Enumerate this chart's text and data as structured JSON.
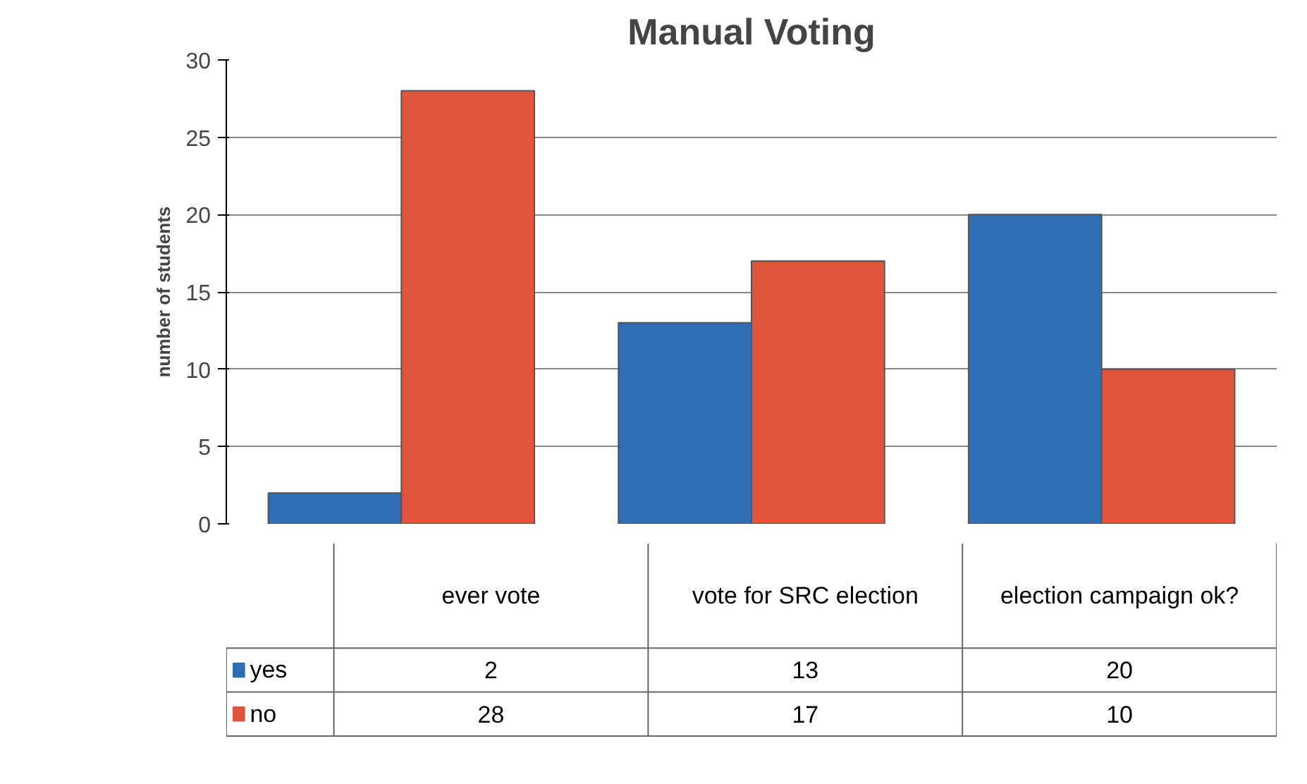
{
  "chart_data": {
    "type": "bar",
    "title": "Manual Voting",
    "ylabel": "number of students",
    "categories": [
      "ever vote",
      "vote for SRC election",
      "election campaign ok?"
    ],
    "series": [
      {
        "name": "yes",
        "color": "#2f6db5",
        "values": [
          2,
          13,
          20
        ]
      },
      {
        "name": "no",
        "color": "#e0553c",
        "values": [
          28,
          17,
          10
        ]
      }
    ],
    "ylim": [
      0,
      30
    ],
    "yticks": [
      0,
      5,
      10,
      15,
      20,
      25,
      30
    ],
    "grid": "y",
    "legend": "bottom left",
    "data_labels": true
  }
}
